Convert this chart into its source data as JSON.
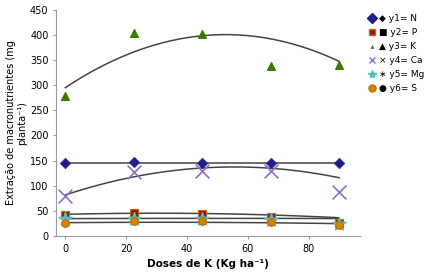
{
  "x_doses": [
    0,
    22.5,
    45,
    67.5,
    90
  ],
  "y1_N": [
    146,
    147,
    145,
    146,
    146
  ],
  "y2_P": [
    42,
    47,
    45,
    38,
    27
  ],
  "y3_K": [
    278,
    403,
    401,
    337,
    340
  ],
  "y4_Ca": [
    80,
    128,
    130,
    130,
    88
  ],
  "y5_Mg": [
    35,
    35,
    35,
    33,
    25
  ],
  "y6_S": [
    26,
    30,
    30,
    28,
    22
  ],
  "fit_K_coeffs": [
    295,
    4.0,
    -0.038
  ],
  "fit_Ca_coeffs": [
    82,
    2.0,
    -0.018
  ],
  "fit_N_coeffs": [
    146.0,
    0.0,
    0.0
  ],
  "fit_P_coeffs": [
    43.5,
    0.15,
    -0.0025
  ],
  "fit_Mg_coeffs": [
    35.0,
    0.02,
    -0.0002
  ],
  "fit_S_coeffs": [
    27.0,
    0.05,
    -0.0008
  ],
  "ylabel": "Extração de macronutrientes (mg\nplanta⁻¹)",
  "xlabel": "Doses de K (Kg ha⁻¹)",
  "xlim": [
    -3,
    97
  ],
  "ylim": [
    0,
    450
  ],
  "yticks": [
    0,
    50,
    100,
    150,
    200,
    250,
    300,
    350,
    400,
    450
  ],
  "xticks": [
    0,
    20,
    40,
    60,
    80
  ],
  "color_N": "#1F1F8B",
  "color_P": "#8B1A1A",
  "color_K": "#3A7A00",
  "color_Ca": "#8B6FC6",
  "color_Mg": "#4FC3C3",
  "color_S": "#CC8800",
  "line_color": "#444444"
}
